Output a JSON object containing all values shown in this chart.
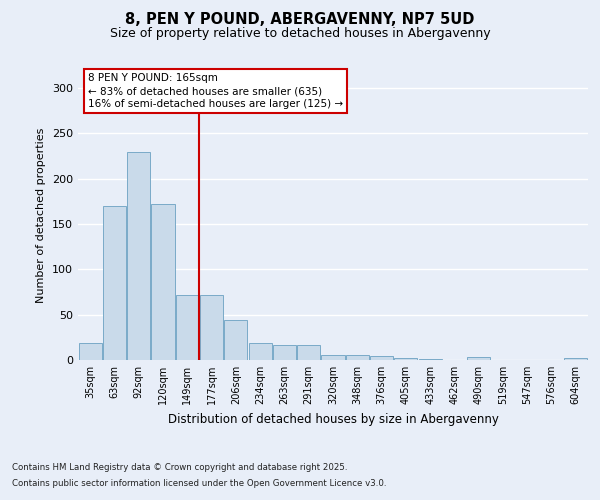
{
  "title1": "8, PEN Y POUND, ABERGAVENNY, NP7 5UD",
  "title2": "Size of property relative to detached houses in Abergavenny",
  "xlabel": "Distribution of detached houses by size in Abergavenny",
  "ylabel": "Number of detached properties",
  "categories": [
    "35sqm",
    "63sqm",
    "92sqm",
    "120sqm",
    "149sqm",
    "177sqm",
    "206sqm",
    "234sqm",
    "263sqm",
    "291sqm",
    "320sqm",
    "348sqm",
    "376sqm",
    "405sqm",
    "433sqm",
    "462sqm",
    "490sqm",
    "519sqm",
    "547sqm",
    "576sqm",
    "604sqm"
  ],
  "values": [
    19,
    170,
    230,
    172,
    72,
    72,
    44,
    19,
    17,
    17,
    6,
    5,
    4,
    2,
    1,
    0,
    3,
    0,
    0,
    0,
    2
  ],
  "bar_color": "#c9daea",
  "bar_edge_color": "#7aaac8",
  "background_color": "#e8eef8",
  "grid_color": "#ffffff",
  "vline_color": "#cc0000",
  "annotation_text": "8 PEN Y POUND: 165sqm\n← 83% of detached houses are smaller (635)\n16% of semi-detached houses are larger (125) →",
  "annotation_box_color": "#ffffff",
  "annotation_box_edge": "#cc0000",
  "footer1": "Contains HM Land Registry data © Crown copyright and database right 2025.",
  "footer2": "Contains public sector information licensed under the Open Government Licence v3.0.",
  "ylim": [
    0,
    320
  ],
  "yticks": [
    0,
    50,
    100,
    150,
    200,
    250,
    300
  ]
}
